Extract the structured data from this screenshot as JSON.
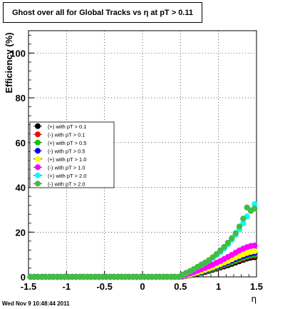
{
  "chart_data": {
    "type": "scatter",
    "title": "Ghost over all for Global Tracks vs η at pT > 0.11",
    "xlabel": "η",
    "ylabel": "Efficiency (%)",
    "xlim": [
      -1.5,
      1.5
    ],
    "ylim": [
      0,
      110
    ],
    "xticks": [
      -1.5,
      -1,
      -0.5,
      0,
      0.5,
      1,
      1.5
    ],
    "xtick_labels": [
      "-1.5",
      "-1",
      "-0.5",
      "0",
      "0.5",
      "1",
      "1.5"
    ],
    "yticks": [
      0,
      20,
      40,
      60,
      80,
      100
    ],
    "ytick_labels": [
      "0",
      "20",
      "40",
      "60",
      "80",
      "100"
    ],
    "grid": true,
    "legend_position": "middle-left",
    "x": [
      -1.475,
      -1.425,
      -1.375,
      -1.325,
      -1.275,
      -1.225,
      -1.175,
      -1.125,
      -1.075,
      -1.025,
      -0.975,
      -0.925,
      -0.875,
      -0.825,
      -0.775,
      -0.725,
      -0.675,
      -0.625,
      -0.575,
      -0.525,
      -0.475,
      -0.425,
      -0.375,
      -0.325,
      -0.275,
      -0.225,
      -0.175,
      -0.125,
      -0.075,
      -0.025,
      0.025,
      0.075,
      0.125,
      0.175,
      0.225,
      0.275,
      0.325,
      0.375,
      0.425,
      0.475,
      0.525,
      0.575,
      0.625,
      0.675,
      0.725,
      0.775,
      0.825,
      0.875,
      0.925,
      0.975,
      1.025,
      1.075,
      1.125,
      1.175,
      1.225,
      1.275,
      1.325,
      1.375,
      1.425,
      1.475
    ],
    "series": [
      {
        "name": "(+) with pT > 0.1",
        "color": "#000000",
        "values": [
          0,
          0,
          0,
          0,
          0,
          0,
          0,
          0,
          0,
          0,
          0,
          0,
          0,
          0,
          0,
          0,
          0,
          0,
          0,
          0,
          0,
          0,
          0,
          0,
          0,
          0,
          0,
          0,
          0,
          0,
          0,
          0,
          0,
          0,
          0,
          0,
          0,
          0,
          0,
          0,
          0.2,
          0.4,
          0.7,
          1.0,
          1.4,
          1.8,
          2.2,
          2.7,
          3.2,
          3.7,
          4.2,
          4.7,
          5.2,
          5.8,
          6.4,
          7.0,
          7.6,
          8.2,
          8.6,
          8.8
        ]
      },
      {
        "name": "(-) with pT > 0.1",
        "color": "#ff0000",
        "values": [
          0,
          0,
          0,
          0,
          0,
          0,
          0,
          0,
          0,
          0,
          0,
          0,
          0,
          0,
          0,
          0,
          0,
          0,
          0,
          0,
          0,
          0,
          0,
          0,
          0,
          0,
          0,
          0,
          0,
          0,
          0,
          0,
          0,
          0,
          0,
          0,
          0,
          0,
          0,
          0,
          0.2,
          0.5,
          0.8,
          1.2,
          1.6,
          2.0,
          2.5,
          3.0,
          3.5,
          4.0,
          4.6,
          5.2,
          5.8,
          6.4,
          7.0,
          7.6,
          8.2,
          8.8,
          9.3,
          9.5
        ]
      },
      {
        "name": "(+) with pT > 0.5",
        "color": "#00cc00",
        "values": [
          0,
          0,
          0,
          0,
          0,
          0,
          0,
          0,
          0,
          0,
          0,
          0,
          0,
          0,
          0,
          0,
          0,
          0,
          0,
          0,
          0,
          0,
          0,
          0,
          0,
          0,
          0,
          0,
          0,
          0,
          0,
          0,
          0,
          0,
          0,
          0,
          0,
          0,
          0,
          0,
          0.2,
          0.5,
          0.8,
          1.2,
          1.6,
          2.1,
          2.6,
          3.1,
          3.6,
          4.2,
          4.8,
          5.4,
          6.0,
          6.6,
          7.3,
          8.0,
          8.6,
          9.2,
          9.7,
          10.0
        ]
      },
      {
        "name": "(-) with pT > 0.5",
        "color": "#0000ff",
        "values": [
          0,
          0,
          0,
          0,
          0,
          0,
          0,
          0,
          0,
          0,
          0,
          0,
          0,
          0,
          0,
          0,
          0,
          0,
          0,
          0,
          0,
          0,
          0,
          0,
          0,
          0,
          0,
          0,
          0,
          0,
          0,
          0,
          0,
          0,
          0,
          0,
          0,
          0,
          0,
          0,
          0.2,
          0.6,
          0.9,
          1.3,
          1.8,
          2.3,
          2.8,
          3.4,
          4.0,
          4.6,
          5.2,
          5.9,
          6.6,
          7.3,
          8.0,
          8.7,
          9.3,
          9.9,
          10.4,
          10.7
        ]
      },
      {
        "name": "(+) with pT > 1.0",
        "color": "#ffff00",
        "values": [
          0,
          0,
          0,
          0,
          0,
          0,
          0,
          0,
          0,
          0,
          0,
          0,
          0,
          0,
          0,
          0,
          0,
          0,
          0,
          0,
          0,
          0,
          0,
          0,
          0,
          0,
          0,
          0,
          0,
          0,
          0,
          0,
          0,
          0,
          0,
          0,
          0,
          0,
          0,
          0,
          0.3,
          0.6,
          1.0,
          1.5,
          2.0,
          2.5,
          3.1,
          3.7,
          4.3,
          5.0,
          5.7,
          6.4,
          7.1,
          7.9,
          8.7,
          9.4,
          10.1,
          10.7,
          11.2,
          11.5
        ]
      },
      {
        "name": "(-) with pT > 1.0",
        "color": "#ff00ff",
        "values": [
          0,
          0,
          0,
          0,
          0,
          0,
          0,
          0,
          0,
          0,
          0,
          0,
          0,
          0,
          0,
          0,
          0,
          0,
          0,
          0,
          0,
          0,
          0,
          0,
          0,
          0,
          0,
          0,
          0,
          0,
          0,
          0,
          0,
          0,
          0,
          0,
          0,
          0,
          0,
          0,
          0.4,
          0.9,
          1.5,
          2.1,
          2.8,
          3.4,
          4.1,
          4.8,
          5.5,
          6.3,
          7.1,
          8.0,
          8.9,
          9.8,
          10.8,
          11.8,
          12.6,
          13.3,
          13.8,
          14.0
        ]
      },
      {
        "name": "(+) with pT > 2.0",
        "color": "#00ffff",
        "values": [
          0,
          0,
          0,
          0,
          0,
          0,
          0,
          0,
          0,
          0,
          0,
          0,
          0,
          0,
          0,
          0,
          0,
          0,
          0,
          0,
          0,
          0,
          0,
          0,
          0,
          0,
          0,
          0,
          0,
          0,
          0,
          0,
          0,
          0,
          0,
          0,
          0,
          0,
          0,
          0,
          0.8,
          1.6,
          2.5,
          3.4,
          4.4,
          5.3,
          6.3,
          7.4,
          8.6,
          9.8,
          11.2,
          12.8,
          14.6,
          16.6,
          18.8,
          21.2,
          24.0,
          27.0,
          29.8,
          32.5
        ]
      },
      {
        "name": "(-) with pT > 2.0",
        "color": "#44bb44",
        "values": [
          0,
          0,
          0,
          0,
          0,
          0,
          0,
          0,
          0,
          0,
          0,
          0,
          0,
          0,
          0,
          0,
          0,
          0,
          0,
          0,
          0,
          0,
          0,
          0,
          0,
          0,
          0,
          0,
          0,
          0,
          0,
          0,
          0,
          0,
          0,
          0,
          0,
          0,
          0,
          0,
          1.0,
          1.8,
          2.6,
          3.5,
          4.5,
          5.5,
          6.4,
          7.5,
          8.8,
          10.2,
          11.8,
          13.4,
          15.3,
          17.3,
          19.5,
          22.5,
          26.0,
          31.0,
          29.5,
          30.5
        ]
      }
    ]
  },
  "footer": "Wed Nov  9 10:48:44 2011"
}
